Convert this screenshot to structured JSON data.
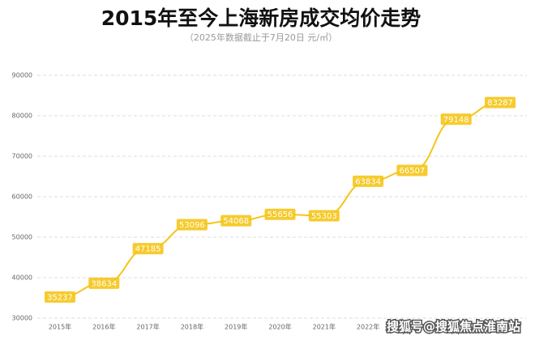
{
  "chart_data": {
    "type": "line",
    "title": "2015年至今上海新房成交均价走势",
    "subtitle": "（2025年数据截止于7月20日  元/㎡）",
    "categories": [
      "2015年",
      "2016年",
      "2017年",
      "2018年",
      "2019年",
      "2020年",
      "2021年",
      "2022年",
      null,
      null,
      null
    ],
    "values": [
      35237,
      38634,
      47185,
      53096,
      54068,
      55656,
      55303,
      63834,
      66507,
      79148,
      83287
    ],
    "color": "#f5c518",
    "ylim": [
      30000,
      90000
    ],
    "yticks": [
      30000,
      40000,
      50000,
      60000,
      70000,
      80000,
      90000
    ],
    "grid": true
  },
  "watermark": "搜狐号@搜狐焦点淮南站"
}
